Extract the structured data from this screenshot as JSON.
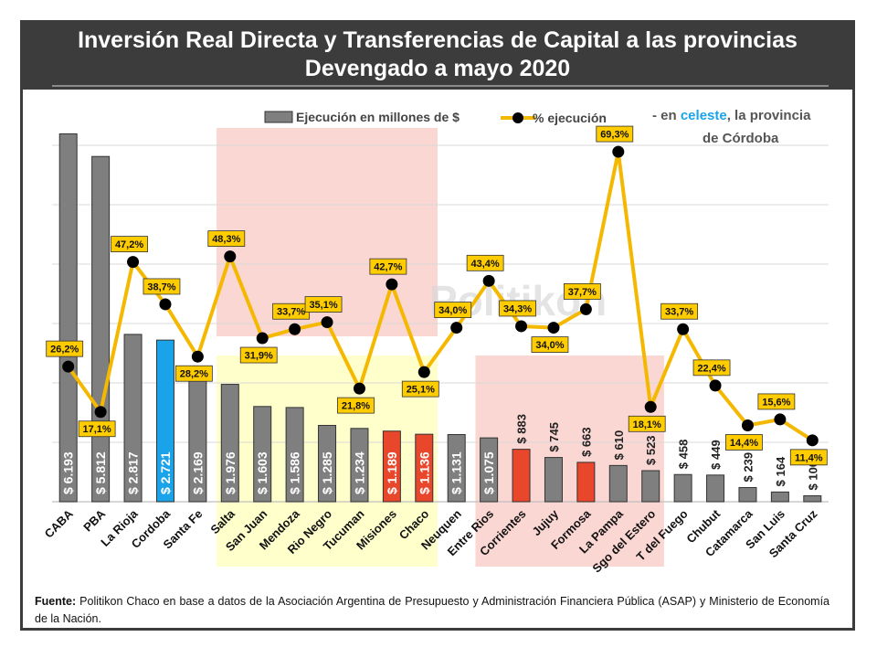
{
  "title": {
    "line1": "Inversión Real Directa y Transferencias de Capital a las provincias",
    "line2": "Devengado a mayo 2020"
  },
  "legend": {
    "bars_label": "Ejecución en millones de $",
    "line_label": "% ejecución"
  },
  "note": {
    "prefix": "- en ",
    "highlight": "celeste",
    "suffix": ", la provincia",
    "line2": "de Córdoba"
  },
  "watermark": "Politikon",
  "source": {
    "label": "Fuente:",
    "text": "Politikon Chaco en base a datos de la Asociación Argentina de Presupuesto y Administración Financiera Pública (ASAP) y Ministerio de Economía de la Nación."
  },
  "colors": {
    "bar_default": "#7f7f7f",
    "bar_cordoba": "#1aa3e8",
    "bar_highlight": "#e8472b",
    "line": "#f5b800",
    "label_box": "#ffcc00",
    "region_pink": "#fbd7d3",
    "region_yellow": "#ffffcc"
  },
  "chart_data": {
    "type": "bar",
    "categories": [
      "CABA",
      "PBA",
      "La Rioja",
      "Cordoba",
      "Santa Fe",
      "Salta",
      "San Juan",
      "Mendoza",
      "Rio Negro",
      "Tucuman",
      "Misiones",
      "Chaco",
      "Neuquen",
      "Entre Rios",
      "Corrientes",
      "Jujuy",
      "Formosa",
      "La Pampa",
      "Sgo del Estero",
      "T del Fuego",
      "Chubut",
      "Catamarca",
      "San Luis",
      "Santa Cruz"
    ],
    "series": [
      {
        "name": "Ejecución en millones de $",
        "type": "bar",
        "values": [
          6193,
          5812,
          2817,
          2721,
          2169,
          1976,
          1603,
          1586,
          1285,
          1234,
          1189,
          1136,
          1131,
          1075,
          883,
          745,
          663,
          610,
          523,
          458,
          449,
          239,
          164,
          100
        ],
        "value_labels": [
          "$ 6.193",
          "$ 5.812",
          "$ 2.817",
          "$ 2.721",
          "$ 2.169",
          "$ 1.976",
          "$ 1.603",
          "$ 1.586",
          "$ 1.285",
          "$ 1.234",
          "$ 1.189",
          "$ 1.136",
          "$ 1.131",
          "$ 1.075",
          "$ 883",
          "$ 745",
          "$ 663",
          "$ 610",
          "$ 523",
          "$ 458",
          "$ 449",
          "$ 239",
          "$ 164",
          "$ 100"
        ],
        "colors": [
          "gray",
          "gray",
          "gray",
          "cordoba",
          "gray",
          "gray",
          "gray",
          "gray",
          "gray",
          "gray",
          "highlight",
          "highlight",
          "gray",
          "gray",
          "highlight",
          "gray",
          "highlight",
          "gray",
          "gray",
          "gray",
          "gray",
          "gray",
          "gray",
          "gray"
        ]
      },
      {
        "name": "% ejecución",
        "type": "line",
        "values": [
          26.2,
          17.1,
          47.2,
          38.7,
          28.2,
          48.3,
          31.9,
          33.7,
          35.1,
          21.8,
          42.7,
          25.1,
          34.0,
          43.4,
          34.3,
          34.0,
          37.7,
          69.3,
          18.1,
          33.7,
          22.4,
          14.4,
          15.6,
          11.4
        ],
        "value_labels": [
          "26,2%",
          "17,1%",
          "47,2%",
          "38,7%",
          "28,2%",
          "48,3%",
          "31,9%",
          "33,7%",
          "35,1%",
          "21,8%",
          "42,7%",
          "25,1%",
          "34,0%",
          "43,4%",
          "34,3%",
          "34,0%",
          "37,7%",
          "69,3%",
          "18,1%",
          "33,7%",
          "22,4%",
          "14,4%",
          "15,6%",
          "11,4%"
        ],
        "label_pos": [
          "above",
          "below",
          "above",
          "above",
          "below",
          "above",
          "below",
          "above",
          "above",
          "below",
          "above",
          "below",
          "above",
          "above",
          "above",
          "below",
          "above",
          "above",
          "below",
          "above",
          "above",
          "below",
          "above",
          "below"
        ]
      }
    ],
    "ylim_bars": [
      0,
      7000
    ],
    "ylim_pct": [
      0,
      75
    ],
    "grid": true,
    "legend_placement": "top-center",
    "regions": [
      {
        "color": "pink",
        "from": "Salta",
        "to": "Chaco",
        "band": "upper"
      },
      {
        "color": "yellow",
        "from": "Salta",
        "to": "Chaco",
        "band": "lower"
      },
      {
        "color": "pink",
        "from": "Entre Rios",
        "to": "Sgo del Estero",
        "band": "lower"
      }
    ]
  }
}
